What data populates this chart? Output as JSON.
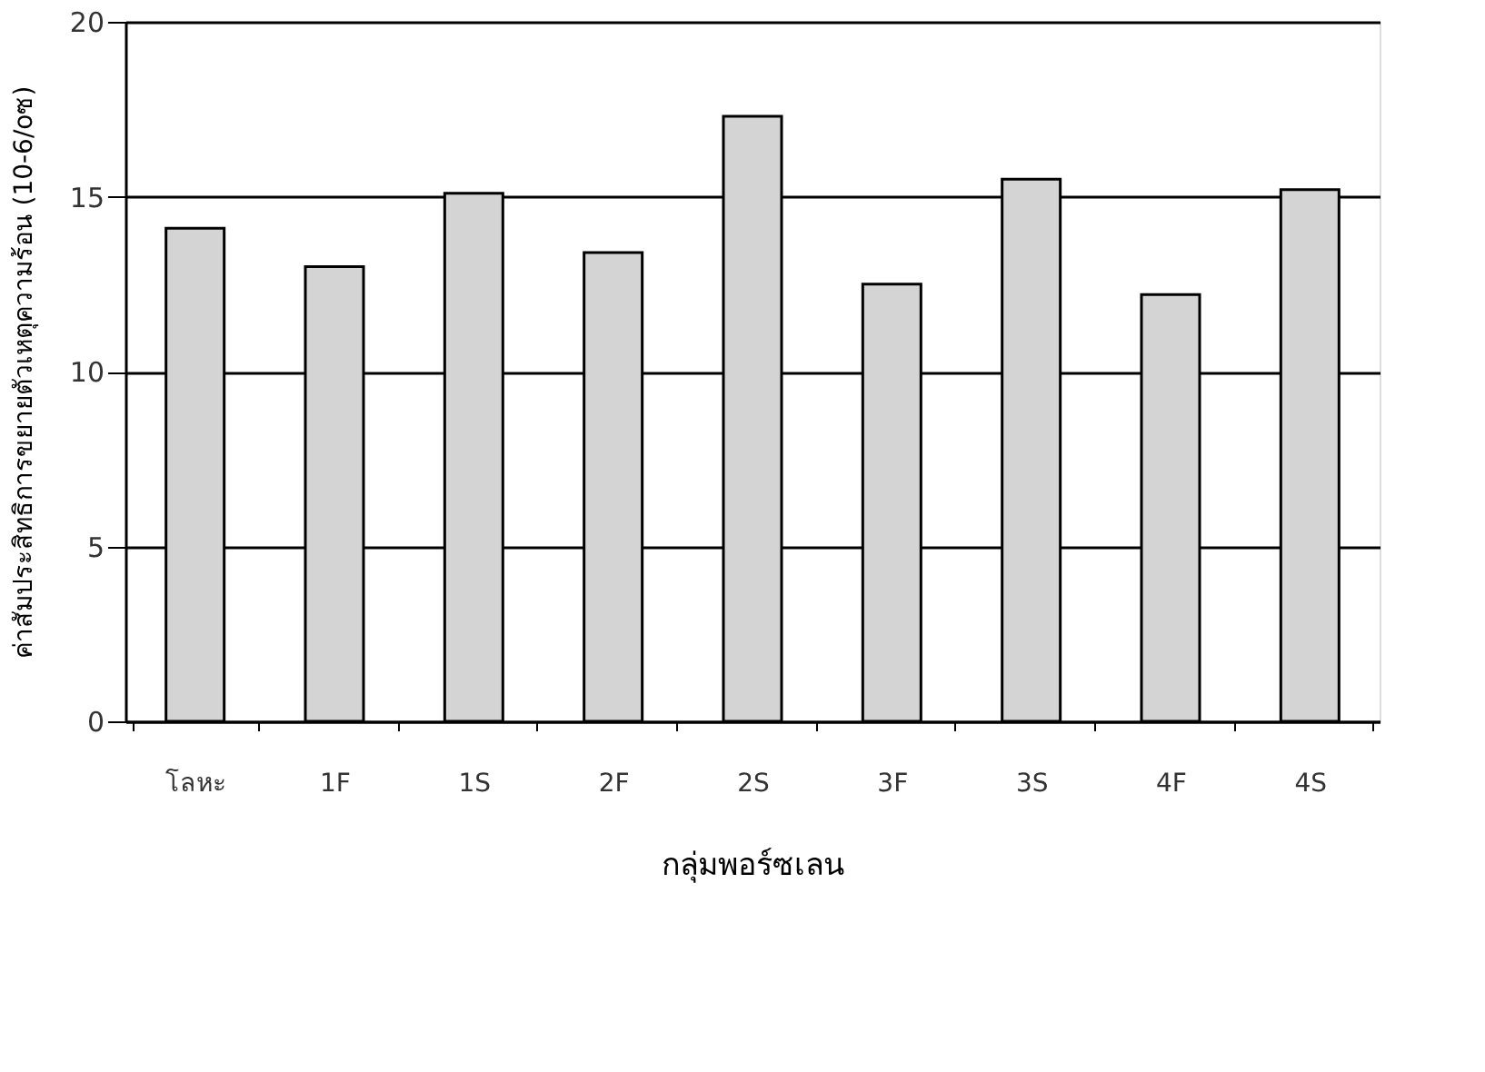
{
  "chart_data": {
    "type": "bar",
    "xlabel": "กลุ่มพอร์ซเลน",
    "ylabel": "ค่าสัมประสิทธิการขยายตัวเหตุความร้อน (10-6/oซ)",
    "categories": [
      "โลหะ",
      "1F",
      "1S",
      "2F",
      "2S",
      "3F",
      "3S",
      "4F",
      "4S"
    ],
    "values": [
      14.1,
      13.0,
      15.1,
      13.4,
      17.3,
      12.5,
      15.5,
      12.2,
      15.2
    ],
    "color": "#d4d4d4",
    "ylim": [
      0,
      20
    ],
    "yticks": [
      0,
      5,
      10,
      15,
      20
    ],
    "grid": "y"
  }
}
